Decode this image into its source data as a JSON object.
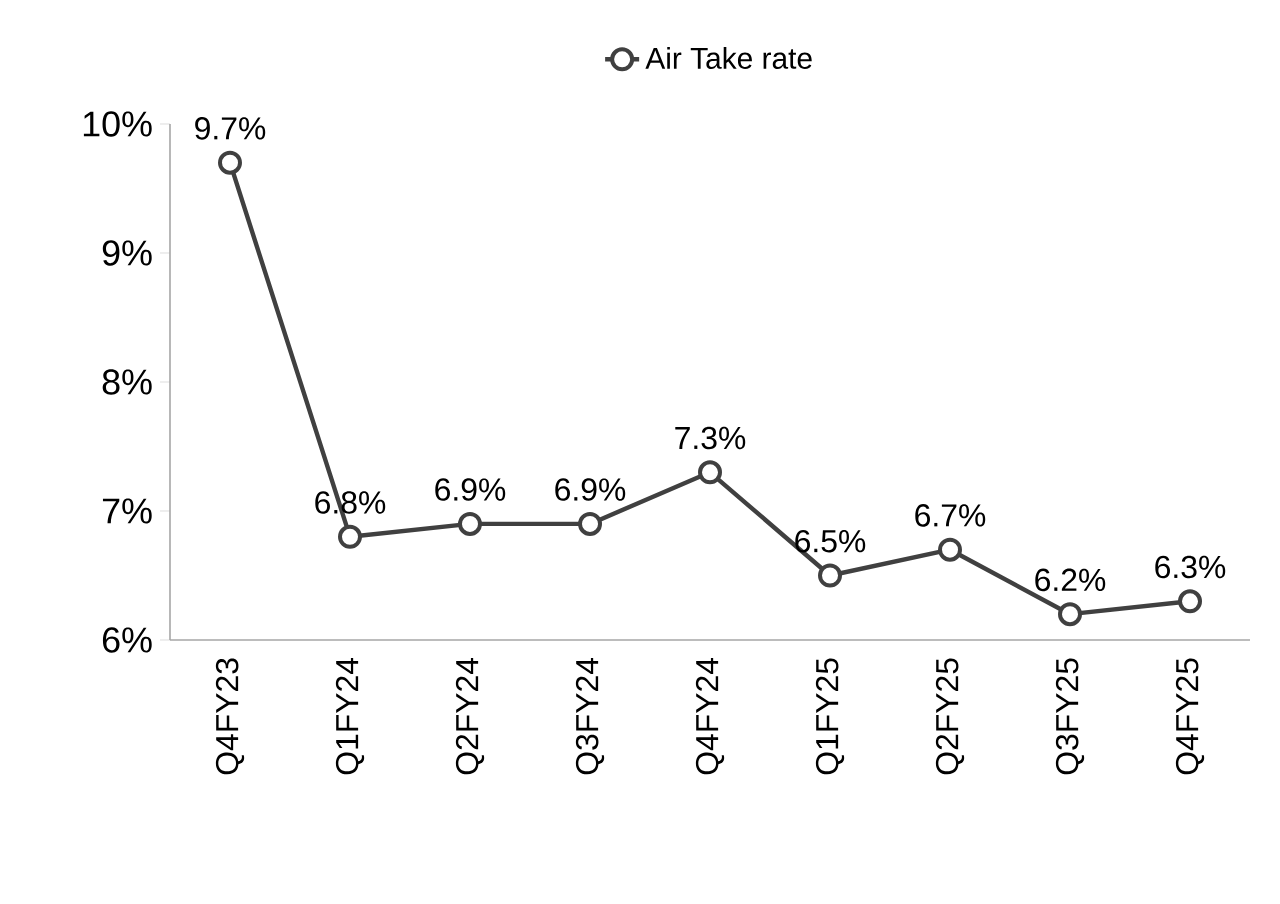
{
  "chart_data": {
    "type": "line",
    "categories": [
      "Q4FY23",
      "Q1FY24",
      "Q2FY24",
      "Q3FY24",
      "Q4FY24",
      "Q1FY25",
      "Q2FY25",
      "Q3FY25",
      "Q4FY25"
    ],
    "series": [
      {
        "name": "Air Take rate",
        "color": "#404040",
        "values": [
          9.7,
          6.8,
          6.9,
          6.9,
          7.3,
          6.5,
          6.7,
          6.2,
          6.3
        ],
        "value_labels": [
          "9.7%",
          "6.8%",
          "6.9%",
          "6.9%",
          "7.3%",
          "6.5%",
          "6.7%",
          "6.2%",
          "6.3%"
        ]
      }
    ],
    "ylim": [
      6,
      10
    ],
    "yticks": [
      {
        "value": 6,
        "label": "6%"
      },
      {
        "value": 7,
        "label": "7%"
      },
      {
        "value": 8,
        "label": "8%"
      },
      {
        "value": 9,
        "label": "9%"
      },
      {
        "value": 10,
        "label": "10%"
      }
    ],
    "grid": false,
    "legend": "top",
    "marker": "circle",
    "line_style": "solid"
  }
}
